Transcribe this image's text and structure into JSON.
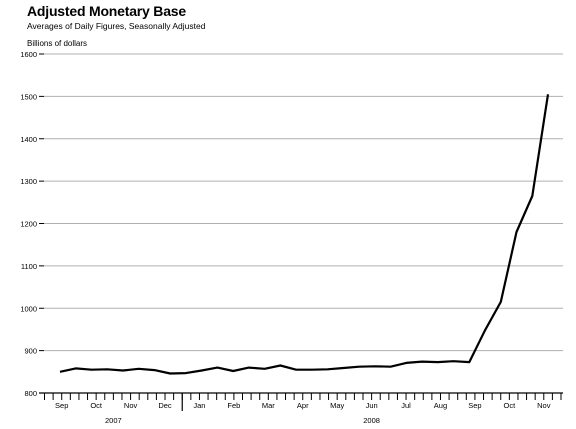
{
  "chart_data": {
    "type": "line",
    "title": "Adjusted Monetary Base",
    "subtitle": "Averages of Daily Figures, Seasonally Adjusted",
    "ylabel": "Billions of dollars",
    "ylim": [
      800,
      1600
    ],
    "yticks": [
      800,
      900,
      1000,
      1100,
      1200,
      1300,
      1400,
      1500,
      1600
    ],
    "grid": true,
    "months": [
      "Sep",
      "Oct",
      "Nov",
      "Dec",
      "Jan",
      "Feb",
      "Mar",
      "Apr",
      "May",
      "Jun",
      "Jul",
      "Aug",
      "Sep",
      "Oct",
      "Nov"
    ],
    "years": [
      "2007",
      "2008"
    ],
    "series": [
      {
        "values": [
          850,
          858,
          855,
          856,
          853,
          857,
          854,
          846,
          847,
          853,
          860,
          852,
          860,
          857,
          865,
          855,
          855,
          856,
          859,
          862,
          863,
          862,
          871,
          874,
          873,
          875,
          873,
          948,
          1015,
          1180,
          1265,
          1505
        ]
      }
    ]
  }
}
